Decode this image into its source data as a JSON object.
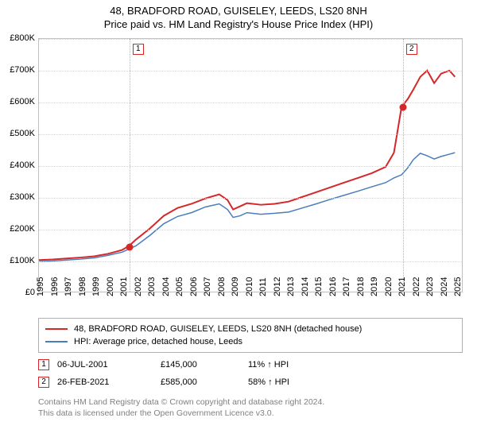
{
  "title_line1": "48, BRADFORD ROAD, GUISELEY, LEEDS, LS20 8NH",
  "title_line2": "Price paid vs. HM Land Registry's House Price Index (HPI)",
  "chart": {
    "type": "line",
    "background_color": "#ffffff",
    "grid_color": "#d8d8d8",
    "border_color": "#c0c0c0",
    "x_years": [
      1995,
      1996,
      1997,
      1998,
      1999,
      2000,
      2001,
      2002,
      2003,
      2004,
      2005,
      2006,
      2007,
      2008,
      2009,
      2010,
      2011,
      2012,
      2013,
      2014,
      2015,
      2016,
      2017,
      2018,
      2019,
      2020,
      2021,
      2022,
      2023,
      2024,
      2025
    ],
    "xlim": [
      1995,
      2025.5
    ],
    "ylim": [
      0,
      800000
    ],
    "ytick_step": 100000,
    "ytick_labels": [
      "£0",
      "£100K",
      "£200K",
      "£300K",
      "£400K",
      "£500K",
      "£600K",
      "£700K",
      "£800K"
    ],
    "xtick_fontsize": 11,
    "ytick_fontsize": 11,
    "series": [
      {
        "name": "property",
        "label": "48, BRADFORD ROAD, GUISELEY, LEEDS, LS20 8NH (detached house)",
        "color": "#d62728",
        "line_width": 2,
        "points": [
          [
            1995.0,
            100000
          ],
          [
            1996.0,
            102000
          ],
          [
            1997.0,
            105000
          ],
          [
            1998.0,
            108000
          ],
          [
            1999.0,
            112000
          ],
          [
            2000.0,
            120000
          ],
          [
            2001.0,
            132000
          ],
          [
            2001.5,
            145000
          ],
          [
            2002.0,
            165000
          ],
          [
            2003.0,
            200000
          ],
          [
            2004.0,
            240000
          ],
          [
            2005.0,
            265000
          ],
          [
            2006.0,
            278000
          ],
          [
            2007.0,
            295000
          ],
          [
            2008.0,
            308000
          ],
          [
            2008.6,
            290000
          ],
          [
            2009.0,
            260000
          ],
          [
            2009.5,
            270000
          ],
          [
            2010.0,
            280000
          ],
          [
            2011.0,
            275000
          ],
          [
            2012.0,
            278000
          ],
          [
            2013.0,
            285000
          ],
          [
            2014.0,
            300000
          ],
          [
            2015.0,
            315000
          ],
          [
            2016.0,
            330000
          ],
          [
            2017.0,
            345000
          ],
          [
            2018.0,
            360000
          ],
          [
            2019.0,
            375000
          ],
          [
            2020.0,
            395000
          ],
          [
            2020.6,
            440000
          ],
          [
            2021.15,
            585000
          ],
          [
            2021.6,
            610000
          ],
          [
            2022.0,
            640000
          ],
          [
            2022.5,
            680000
          ],
          [
            2023.0,
            700000
          ],
          [
            2023.5,
            660000
          ],
          [
            2024.0,
            690000
          ],
          [
            2024.6,
            700000
          ],
          [
            2025.0,
            680000
          ]
        ]
      },
      {
        "name": "hpi",
        "label": "HPI: Average price, detached house, Leeds",
        "color": "#4a7ebb",
        "line_width": 1.5,
        "points": [
          [
            1995.0,
            95000
          ],
          [
            1996.0,
            97000
          ],
          [
            1997.0,
            100000
          ],
          [
            1998.0,
            103000
          ],
          [
            1999.0,
            107000
          ],
          [
            2000.0,
            115000
          ],
          [
            2001.0,
            125000
          ],
          [
            2002.0,
            145000
          ],
          [
            2003.0,
            178000
          ],
          [
            2004.0,
            215000
          ],
          [
            2005.0,
            238000
          ],
          [
            2006.0,
            250000
          ],
          [
            2007.0,
            268000
          ],
          [
            2008.0,
            278000
          ],
          [
            2008.6,
            260000
          ],
          [
            2009.0,
            235000
          ],
          [
            2009.5,
            240000
          ],
          [
            2010.0,
            250000
          ],
          [
            2011.0,
            245000
          ],
          [
            2012.0,
            248000
          ],
          [
            2013.0,
            252000
          ],
          [
            2014.0,
            265000
          ],
          [
            2015.0,
            278000
          ],
          [
            2016.0,
            292000
          ],
          [
            2017.0,
            305000
          ],
          [
            2018.0,
            318000
          ],
          [
            2019.0,
            332000
          ],
          [
            2020.0,
            345000
          ],
          [
            2020.6,
            360000
          ],
          [
            2021.15,
            370000
          ],
          [
            2021.6,
            392000
          ],
          [
            2022.0,
            418000
          ],
          [
            2022.5,
            438000
          ],
          [
            2023.0,
            430000
          ],
          [
            2023.5,
            420000
          ],
          [
            2024.0,
            428000
          ],
          [
            2024.6,
            435000
          ],
          [
            2025.0,
            440000
          ]
        ]
      }
    ],
    "sale_markers": [
      {
        "n": "1",
        "x": 2001.5,
        "date": "06-JUL-2001",
        "price": "£145,000",
        "delta": "11% ↑ HPI",
        "box_color": "#d62728"
      },
      {
        "n": "2",
        "x": 2021.15,
        "date": "26-FEB-2021",
        "price": "£585,000",
        "delta": "58% ↑ HPI",
        "box_color": "#d62728"
      }
    ],
    "sale_dot_color": "#d62728",
    "vline_color": "#e8a0a0"
  },
  "legend": {
    "border_color": "#b0b0b0",
    "fontsize": 11
  },
  "footnote_line1": "Contains HM Land Registry data © Crown copyright and database right 2024.",
  "footnote_line2": "This data is licensed under the Open Government Licence v3.0.",
  "footnote_color": "#808080"
}
